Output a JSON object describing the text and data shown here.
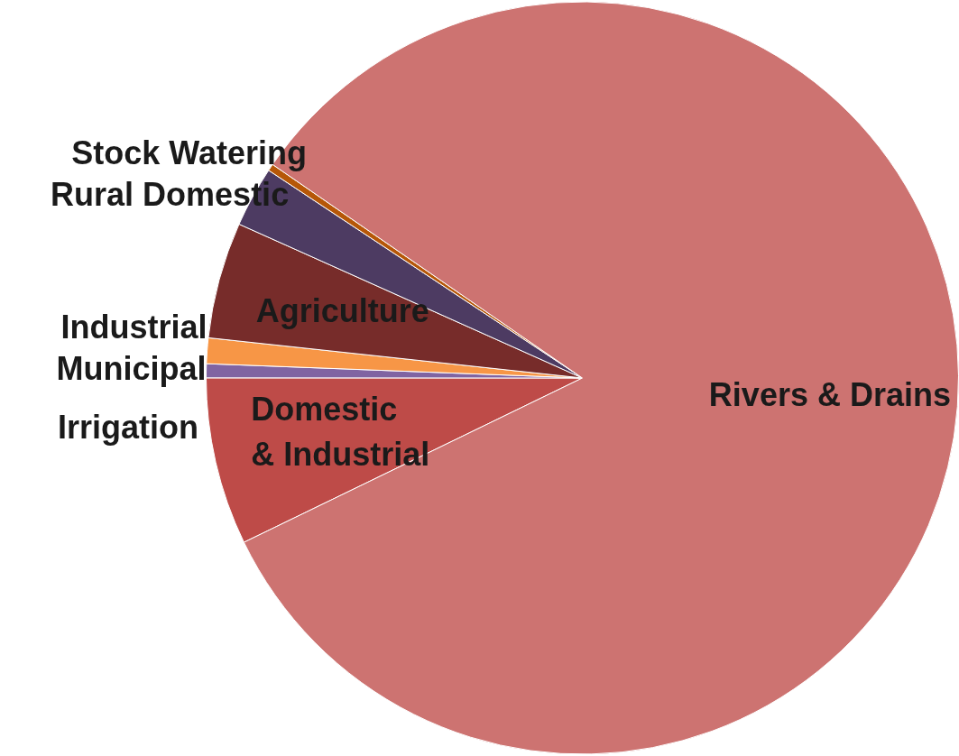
{
  "chart_data": {
    "type": "pie",
    "categories": [
      "Domestic\n& Industrial",
      "Municipal",
      "Industrial",
      "Agriculture",
      "Rural Domestic",
      "Stock Watering",
      "Rivers & Drains"
    ],
    "values": [
      7.2,
      0.6,
      1.1,
      5.0,
      2.6,
      0.3,
      83.2
    ],
    "colors": [
      "#be4b48",
      "#8064a2",
      "#f79646",
      "#772c2a",
      "#4d3b62",
      "#b65708",
      "#cd7371"
    ],
    "legend": false,
    "annotations": [
      "Irrigation"
    ]
  }
}
